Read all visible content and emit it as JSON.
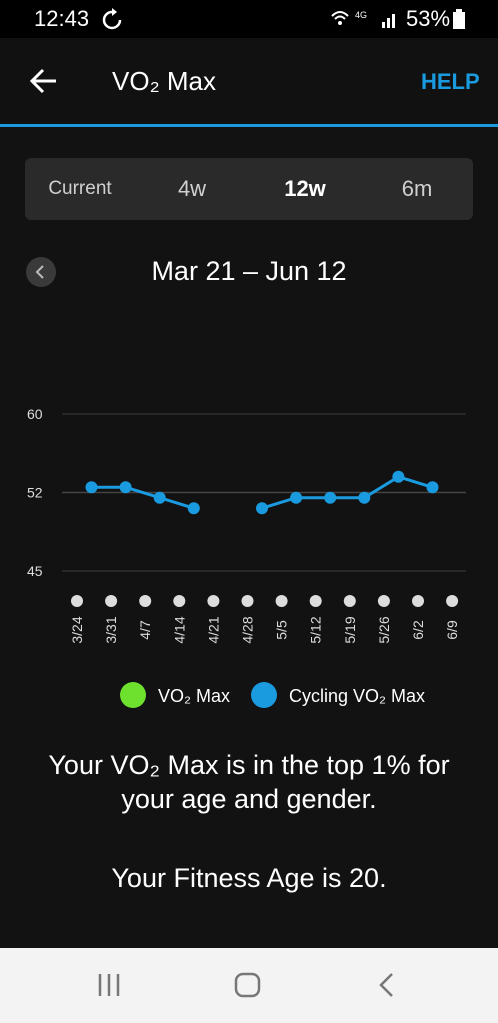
{
  "status_bar": {
    "time": "12:43",
    "battery": "53%"
  },
  "header": {
    "title": "VO₂ Max",
    "help": "HELP"
  },
  "tabs": [
    "Current",
    "4w",
    "12w",
    "6m"
  ],
  "date_range": "Mar 21 – Jun 12",
  "chart_data": {
    "type": "line",
    "categories": [
      "3/24",
      "3/31",
      "4/7",
      "4/14",
      "4/21",
      "4/28",
      "5/5",
      "5/12",
      "5/19",
      "5/26",
      "6/2",
      "6/9"
    ],
    "series": [
      {
        "name": "VO₂ Max",
        "color": "#6ee02e",
        "values": [
          null,
          null,
          null,
          null,
          null,
          null,
          null,
          null,
          null,
          null,
          null,
          null
        ]
      },
      {
        "name": "Cycling VO₂ Max",
        "color": "#1a9be0",
        "values": [
          53,
          53,
          52,
          51,
          null,
          51,
          52,
          52,
          52,
          54,
          53,
          null
        ]
      }
    ],
    "ylim": [
      45,
      60
    ],
    "yticks": [
      60,
      {
        "value": 52.5,
        "label": "52"
      },
      45
    ],
    "grid": true
  },
  "messages": [
    "Your VO₂ Max is in the top 1% for your age and gender.",
    "Your Fitness Age is 20."
  ]
}
